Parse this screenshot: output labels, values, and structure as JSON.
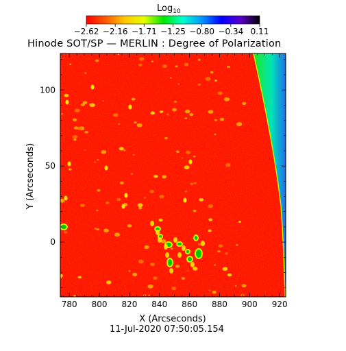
{
  "chart_data": {
    "type": "heatmap",
    "title": "Hinode SOT/SP — MERLIN : Degree of Polarization",
    "xlabel": "X (Arcseconds)",
    "ylabel": "Y (Arcseconds)",
    "timestamp": "11-Jul-2020 07:50:05.154",
    "xlim": [
      774,
      924
    ],
    "ylim": [
      -36,
      124
    ],
    "xticks": [
      780,
      800,
      820,
      840,
      860,
      880,
      900,
      920
    ],
    "yticks": [
      0,
      50,
      100
    ],
    "colorbar": {
      "label": "Log",
      "label_sub": "10",
      "range": [
        -2.62,
        0.11
      ],
      "ticks": [
        "-2.62",
        "-2.16",
        "-1.71",
        "-1.25",
        "-0.80",
        "-0.34",
        "0.11"
      ],
      "colors": [
        "#ff0000",
        "#ff5a00",
        "#ffc800",
        "#e6ff00",
        "#00e600",
        "#00ffd2",
        "#0096ff",
        "#0000ff",
        "#5a00c8",
        "#000000"
      ]
    }
  }
}
